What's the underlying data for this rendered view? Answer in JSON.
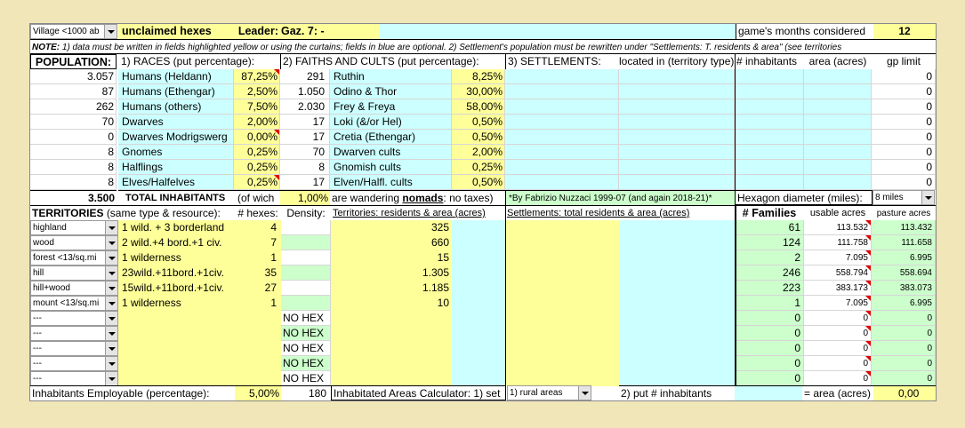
{
  "header": {
    "village_select": "Village <1000 ab",
    "unclaimed": "unclaimed hexes",
    "leader_label": "Leader:",
    "leader_value": "Gaz. 7: -",
    "months_label": "game's months considered",
    "months_value": "12"
  },
  "note": {
    "prefix": "NOTE:",
    "text": " 1) data must be written in fields highlighted yellow or using the curtains; fields in blue are optional. 2) Settlement's population must be rewritten under \"Settlements: T. residents & area\" (see territories"
  },
  "population_header": {
    "population": "POPULATION:",
    "races": "1) RACES (put percentage):",
    "faiths": "2) FAITHS AND CULTS (put percentage):",
    "settlements": "3) SETTLEMENTS:",
    "located": "located in (territory type)",
    "inhabitants": "# inhabitants",
    "area": "area (acres)",
    "gp_limit": "gp limit"
  },
  "races": [
    {
      "count": "3.057",
      "name": "Humans (Heldann)",
      "pct": "87,25%"
    },
    {
      "count": "87",
      "name": "Humans (Ethengar)",
      "pct": "2,50%"
    },
    {
      "count": "262",
      "name": "Humans (others)",
      "pct": "7,50%"
    },
    {
      "count": "70",
      "name": "Dwarves",
      "pct": "2,00%"
    },
    {
      "count": "0",
      "name": "Dwarves Modrigswerg",
      "pct": "0,00%"
    },
    {
      "count": "8",
      "name": "Gnomes",
      "pct": "0,25%"
    },
    {
      "count": "8",
      "name": "Halflings",
      "pct": "0,25%"
    },
    {
      "count": "8",
      "name": "Elves/Halfelves",
      "pct": "0,25%"
    }
  ],
  "faiths": [
    {
      "count": "291",
      "name": "Ruthin",
      "pct": "8,25%"
    },
    {
      "count": "1.050",
      "name": "Odino & Thor",
      "pct": "30,00%"
    },
    {
      "count": "2.030",
      "name": "Frey & Freya",
      "pct": "58,00%"
    },
    {
      "count": "17",
      "name": "Loki (&/or Hel)",
      "pct": "0,50%"
    },
    {
      "count": "17",
      "name": "Cretia (Ethengar)",
      "pct": "0,50%"
    },
    {
      "count": "70",
      "name": "Dwarven cults",
      "pct": "2,00%"
    },
    {
      "count": "8",
      "name": "Gnomish cults",
      "pct": "0,25%"
    },
    {
      "count": "17",
      "name": "Elven/Halfl. cults",
      "pct": "0,50%"
    }
  ],
  "gp_limits": [
    "0",
    "0",
    "0",
    "0",
    "0",
    "0",
    "0",
    "0"
  ],
  "totals": {
    "count": "3.500",
    "label": "TOTAL INHABITANTS",
    "of_which": "(of wich",
    "nomad_pct": "1,00%",
    "are_wandering": "are wandering",
    "nomads": "nomads",
    "no_taxes": ": no taxes)",
    "credit": "*By Fabrizio Nuzzaci 1999-07 (and again 2018-21)*",
    "hex_label": "Hexagon diameter (miles):",
    "hex_value": "8 miles"
  },
  "territories_header": {
    "territories": "TERRITORIES",
    "same_type": "(same type & resource):",
    "hexes": "# hexes:",
    "density": "Density:",
    "residents": "Territories: residents & area (acres)",
    "settlements": "Settlements: total residents & area (acres)",
    "families": "# Families",
    "usable": "usable acres",
    "pasture": "pasture acres"
  },
  "territories": [
    {
      "type": "highland",
      "desc": "1 wild. + 3 borderland",
      "hexes": "4",
      "density": "",
      "residents": "325",
      "families": "61",
      "usable": "113.532",
      "pasture": "113.432"
    },
    {
      "type": "wood",
      "desc": "2 wild.+4 bord.+1 civ.",
      "hexes": "7",
      "density": "",
      "residents": "660",
      "families": "124",
      "usable": "111.758",
      "pasture": "111.658"
    },
    {
      "type": "forest <13/sq.mi",
      "desc": "1 wilderness",
      "hexes": "1",
      "density": "",
      "residents": "15",
      "families": "2",
      "usable": "7.095",
      "pasture": "6.995"
    },
    {
      "type": "hill",
      "desc": "23wild.+11bord.+1civ.",
      "hexes": "35",
      "density": "",
      "residents": "1.305",
      "families": "246",
      "usable": "558.794",
      "pasture": "558.694"
    },
    {
      "type": "hill+wood",
      "desc": "15wild.+11bord.+1civ.",
      "hexes": "27",
      "density": "",
      "residents": "1.185",
      "families": "223",
      "usable": "383.173",
      "pasture": "383.073"
    },
    {
      "type": "mount <13/sq.mi",
      "desc": "1 wilderness",
      "hexes": "1",
      "density": "",
      "residents": "10",
      "families": "1",
      "usable": "7.095",
      "pasture": "6.995"
    },
    {
      "type": "---",
      "desc": "",
      "hexes": "",
      "density": "NO HEX",
      "residents": "",
      "families": "0",
      "usable": "0",
      "pasture": "0"
    },
    {
      "type": "---",
      "desc": "",
      "hexes": "",
      "density": "NO HEX",
      "residents": "",
      "families": "0",
      "usable": "0",
      "pasture": "0"
    },
    {
      "type": "---",
      "desc": "",
      "hexes": "",
      "density": "NO HEX",
      "residents": "",
      "families": "0",
      "usable": "0",
      "pasture": "0"
    },
    {
      "type": "---",
      "desc": "",
      "hexes": "",
      "density": "NO HEX",
      "residents": "",
      "families": "0",
      "usable": "0",
      "pasture": "0"
    },
    {
      "type": "---",
      "desc": "",
      "hexes": "",
      "density": "NO HEX",
      "residents": "",
      "families": "0",
      "usable": "0",
      "pasture": "0"
    }
  ],
  "footer": {
    "employable_label": "Inhabitants Employable (percentage):",
    "employable_pct": "5,00%",
    "employable_count": "180",
    "calc_label": "Inhabitated Areas Calculator: 1) set",
    "calc_select": "1) rural areas",
    "put_label": "2) put # inhabitants",
    "area_label": "= area (acres)",
    "area_value": "0,00"
  },
  "colors": {
    "background": "#f0e6b8",
    "yellow": "#ffff99",
    "blue": "#ccffff",
    "green": "#ccffcc",
    "comment_marker": "#e00000"
  }
}
